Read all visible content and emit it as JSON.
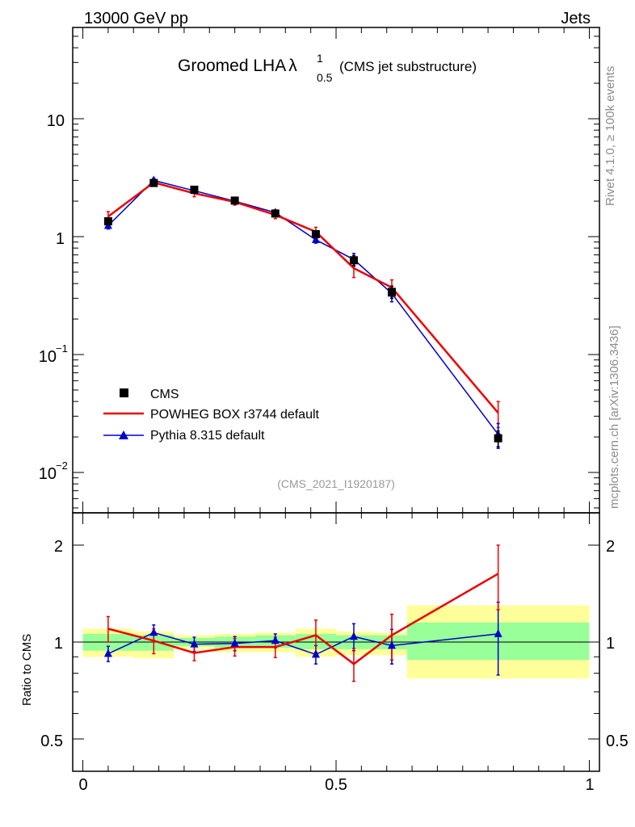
{
  "header": {
    "left": "13000 GeV pp",
    "right": "Jets"
  },
  "side_labels": {
    "rivet": "Rivet 4.1.0, ≥ 100k events",
    "mcplots": "mcplots.cern.ch [arXiv:1306.3436]"
  },
  "title": {
    "main": "Groomed LHA",
    "lambda": "λ",
    "sup": "1",
    "sub": "0.5",
    "suffix": "(CMS jet substructure)"
  },
  "analysis_id": "(CMS_2021_I1920187)",
  "legend": [
    {
      "label": "CMS"
    },
    {
      "label": "POWHEG BOX r3744 default"
    },
    {
      "label": "Pythia 8.315 default"
    }
  ],
  "colors": {
    "cms": "#000000",
    "powheg": "#ee0000",
    "pythia": "#0000cc",
    "band_inner": "#99ff99",
    "band_outer": "#ffff99"
  },
  "chart_data": [
    {
      "type": "line",
      "scale": "log",
      "xlim": [
        -0.02,
        1.02
      ],
      "ylim": [
        0.005,
        60
      ],
      "ytick_labels": {
        "major": [
          "10",
          "1",
          "10",
          "10"
        ],
        "exponents": [
          "",
          "",
          "−1",
          "−2"
        ]
      },
      "x": [
        0.05,
        0.14,
        0.22,
        0.3,
        0.38,
        0.46,
        0.535,
        0.61,
        0.82
      ],
      "series": [
        {
          "name": "CMS",
          "values": [
            1.35,
            2.85,
            2.5,
            2.02,
            1.57,
            1.05,
            0.63,
            0.34,
            0.0195
          ],
          "err": [
            0.08,
            0.1,
            0.08,
            0.07,
            0.06,
            0.06,
            0.06,
            0.04,
            0.003
          ]
        },
        {
          "name": "POWHEG BOX r3744 default",
          "values": [
            1.48,
            2.88,
            2.33,
            1.97,
            1.53,
            1.1,
            0.54,
            0.37,
            0.032
          ],
          "err": [
            0.15,
            0.15,
            0.15,
            0.12,
            0.11,
            0.1,
            0.09,
            0.06,
            0.008
          ]
        },
        {
          "name": "Pythia 8.315 default",
          "values": [
            1.24,
            3.0,
            2.45,
            2.0,
            1.6,
            0.94,
            0.64,
            0.33,
            0.021
          ],
          "err": [
            0.08,
            0.13,
            0.1,
            0.07,
            0.08,
            0.06,
            0.08,
            0.05,
            0.005
          ]
        }
      ]
    },
    {
      "type": "line",
      "scale": "log",
      "ylabel": "Ratio to CMS",
      "xlim": [
        -0.02,
        1.02
      ],
      "ylim": [
        0.42,
        2.35
      ],
      "xtick_labels": [
        "0",
        "0.5",
        "1"
      ],
      "ytick_labels": [
        "2",
        "1",
        "0.5"
      ],
      "bins": [
        {
          "lo": 0.0,
          "hi": 0.1,
          "inner": [
            0.94,
            1.06
          ],
          "outer": [
            0.9,
            1.1
          ]
        },
        {
          "lo": 0.1,
          "hi": 0.18,
          "inner": [
            0.94,
            1.05
          ],
          "outer": [
            0.89,
            1.08
          ]
        },
        {
          "lo": 0.18,
          "hi": 0.26,
          "inner": [
            0.97,
            1.03
          ],
          "outer": [
            0.95,
            1.05
          ]
        },
        {
          "lo": 0.26,
          "hi": 0.34,
          "inner": [
            0.96,
            1.04
          ],
          "outer": [
            0.93,
            1.06
          ]
        },
        {
          "lo": 0.34,
          "hi": 0.42,
          "inner": [
            0.96,
            1.05
          ],
          "outer": [
            0.93,
            1.07
          ]
        },
        {
          "lo": 0.42,
          "hi": 0.5,
          "inner": [
            0.95,
            1.06
          ],
          "outer": [
            0.9,
            1.1
          ]
        },
        {
          "lo": 0.5,
          "hi": 0.57,
          "inner": [
            0.95,
            1.05
          ],
          "outer": [
            0.91,
            1.08
          ]
        },
        {
          "lo": 0.57,
          "hi": 0.64,
          "inner": [
            0.95,
            1.05
          ],
          "outer": [
            0.91,
            1.07
          ]
        },
        {
          "lo": 0.64,
          "hi": 1.0,
          "inner": [
            0.88,
            1.15
          ],
          "outer": [
            0.77,
            1.3
          ]
        }
      ],
      "x": [
        0.05,
        0.14,
        0.22,
        0.3,
        0.38,
        0.46,
        0.535,
        0.61,
        0.82
      ],
      "series": [
        {
          "name": "POWHEG BOX r3744 default",
          "values": [
            1.1,
            1.01,
            0.925,
            0.965,
            0.965,
            1.05,
            0.855,
            1.05,
            1.63
          ],
          "err": [
            0.1,
            0.09,
            0.05,
            0.06,
            0.07,
            0.12,
            0.1,
            0.17,
            0.37
          ]
        },
        {
          "name": "Pythia 8.315 default",
          "values": [
            0.92,
            1.07,
            0.985,
            0.99,
            1.01,
            0.915,
            1.04,
            0.975,
            1.06
          ],
          "err": [
            0.05,
            0.06,
            0.05,
            0.05,
            0.05,
            0.06,
            0.1,
            0.12,
            0.27
          ]
        }
      ]
    }
  ]
}
